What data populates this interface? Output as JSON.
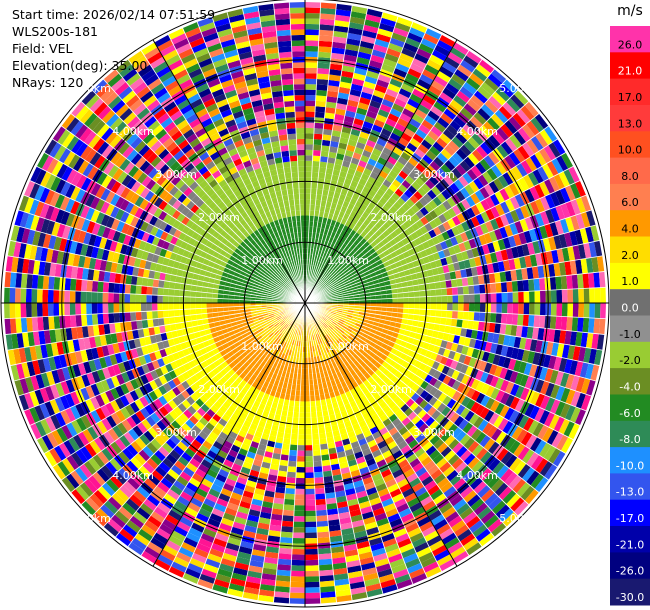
{
  "header": {
    "start_time": "Start time: 2026/02/14 07:51:59",
    "instrument": "WLS200s-181",
    "field": "Field: VEL",
    "elevation": "Elevation(deg): 35.00",
    "nrays": "NRays: 120"
  },
  "chart_data": {
    "type": "ppi",
    "field": "VEL",
    "elevation_deg": 35.0,
    "n_rays": 120,
    "range_rings_km": [
      1.0,
      2.0,
      3.0,
      4.0,
      5.0
    ],
    "range_ring_labels": [
      "1.00km",
      "2.00km",
      "3.00km",
      "4.00km",
      "5.00km"
    ],
    "colorbar": {
      "unit": "m/s",
      "ticks": [
        "26.0",
        "21.0",
        "17.0",
        "13.0",
        "10.0",
        "8.0",
        "6.0",
        "4.0",
        "2.0",
        "1.0",
        "0.0",
        "-1.0",
        "-2.0",
        "-4.0",
        "-6.0",
        "-8.0",
        "-10.0",
        "-13.0",
        "-17.0",
        "-21.0",
        "-26.0",
        "-30.0"
      ],
      "colors": [
        "#ff33aa",
        "#ff0000",
        "#ff2a2a",
        "#ff3b3b",
        "#ff5020",
        "#ff6a4a",
        "#ff7f50",
        "#ff9900",
        "#ffdd00",
        "#ffff00",
        "#707070",
        "#909090",
        "#99cc33",
        "#6b8e23",
        "#228b22",
        "#2e8b57",
        "#1e90ff",
        "#3355ee",
        "#0000ff",
        "#0000aa",
        "#000080",
        "#191970"
      ]
    }
  }
}
